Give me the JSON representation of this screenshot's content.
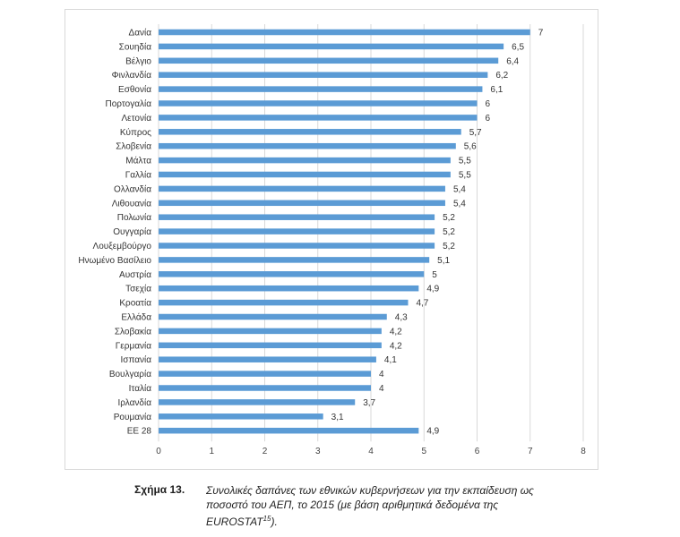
{
  "chart_data": {
    "type": "bar",
    "orientation": "horizontal",
    "categories": [
      "Δανία",
      "Σουηδία",
      "Βέλγιο",
      "Φινλανδία",
      "Εσθονία",
      "Πορτογαλία",
      "Λετονία",
      "Κύπρος",
      "Σλοβενία",
      "Μάλτα",
      "Γαλλία",
      "Ολλανδία",
      "Λιθουανία",
      "Πολωνία",
      "Ουγγαρία",
      "Λουξεμβούργο",
      "Ηνωμένο Βασίλειο",
      "Αυστρία",
      "Τσεχία",
      "Κροατία",
      "Ελλάδα",
      "Σλοβακία",
      "Γερμανία",
      "Ισπανία",
      "Βουλγαρία",
      "Ιταλία",
      "Ιρλανδία",
      "Ρουμανία",
      "ΕΕ 28"
    ],
    "values": [
      7,
      6.5,
      6.4,
      6.2,
      6.1,
      6,
      6,
      5.7,
      5.6,
      5.5,
      5.5,
      5.4,
      5.4,
      5.2,
      5.2,
      5.2,
      5.1,
      5,
      4.9,
      4.7,
      4.3,
      4.2,
      4.2,
      4.1,
      4,
      4,
      3.7,
      3.1,
      4.9
    ],
    "value_labels": [
      "7",
      "6,5",
      "6,4",
      "6,2",
      "6,1",
      "6",
      "6",
      "5,7",
      "5,6",
      "5,5",
      "5,5",
      "5,4",
      "5,4",
      "5,2",
      "5,2",
      "5,2",
      "5,1",
      "5",
      "4,9",
      "4,7",
      "4,3",
      "4,2",
      "4,2",
      "4,1",
      "4",
      "4",
      "3,7",
      "3,1",
      "4,9"
    ],
    "xlim": [
      0,
      8
    ],
    "xticks": [
      "0",
      "1",
      "2",
      "3",
      "4",
      "5",
      "6",
      "7",
      "8"
    ],
    "grid": "vertical",
    "bar_color": "#5b9bd5",
    "grid_color": "#d9d9d9",
    "title": "",
    "xlabel": "",
    "ylabel": ""
  },
  "caption": {
    "number": "Σχήμα 13.",
    "text": "Συνολικές δαπάνες των εθνικών κυβερνήσεων για την εκπαίδευση ως ποσοστό του ΑΕΠ, το 2015 (με βάση αριθμητικά δεδομένα της EUROSTAT",
    "footnote_ref": "15",
    "text_end": ")."
  }
}
